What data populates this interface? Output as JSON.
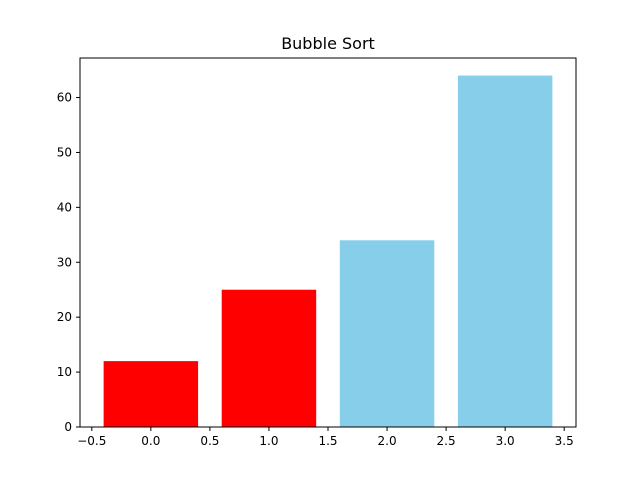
{
  "chart_data": {
    "type": "bar",
    "title": "Bubble Sort",
    "xlabel": "",
    "ylabel": "",
    "x": [
      0,
      1,
      2,
      3
    ],
    "values": [
      12,
      25,
      34,
      64
    ],
    "bar_colors": [
      "#ff0000",
      "#ff0000",
      "#87ceeb",
      "#87ceeb"
    ],
    "bar_width": 0.8,
    "xlim": [
      -0.6,
      3.6
    ],
    "ylim": [
      0,
      67.2
    ],
    "xticks": [
      -0.5,
      0.0,
      0.5,
      1.0,
      1.5,
      2.0,
      2.5,
      3.0,
      3.5
    ],
    "xtick_labels": [
      "−0.5",
      "0.0",
      "0.5",
      "1.0",
      "1.5",
      "2.0",
      "2.5",
      "3.0",
      "3.5"
    ],
    "yticks": [
      0,
      10,
      20,
      30,
      40,
      50,
      60
    ],
    "ytick_labels": [
      "0",
      "10",
      "20",
      "30",
      "40",
      "50",
      "60"
    ],
    "grid": false,
    "legend": false
  }
}
